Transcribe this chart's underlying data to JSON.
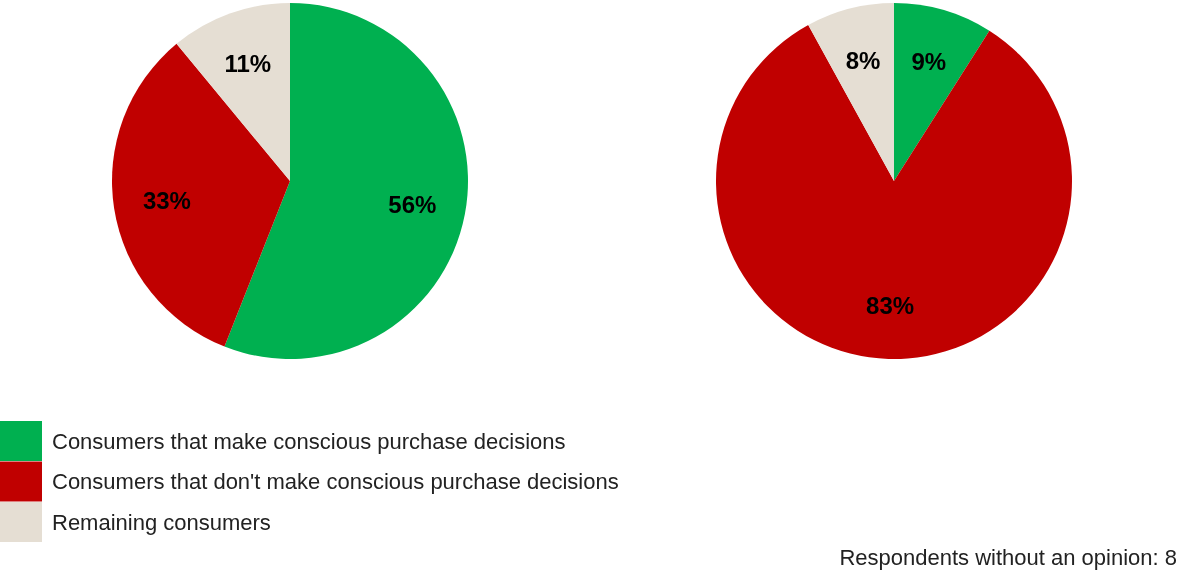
{
  "chart_data": {
    "type": "pie",
    "categories": [
      "Consumers that make conscious purchase decisions",
      "Consumers that don't make conscious purchase decisions",
      "Remaining consumers"
    ],
    "colors": [
      "#00b050",
      "#c00000",
      "#e5ded3"
    ],
    "legend": "bottom left",
    "series": [
      {
        "values": [
          56,
          33,
          11
        ],
        "value_labels": [
          "56%",
          "33%",
          "11%"
        ]
      },
      {
        "values": [
          9,
          83,
          8
        ],
        "value_labels": [
          "9%",
          "83%",
          "8%"
        ]
      }
    ],
    "annotations": [
      "Respondents without an opinion: 8"
    ]
  }
}
